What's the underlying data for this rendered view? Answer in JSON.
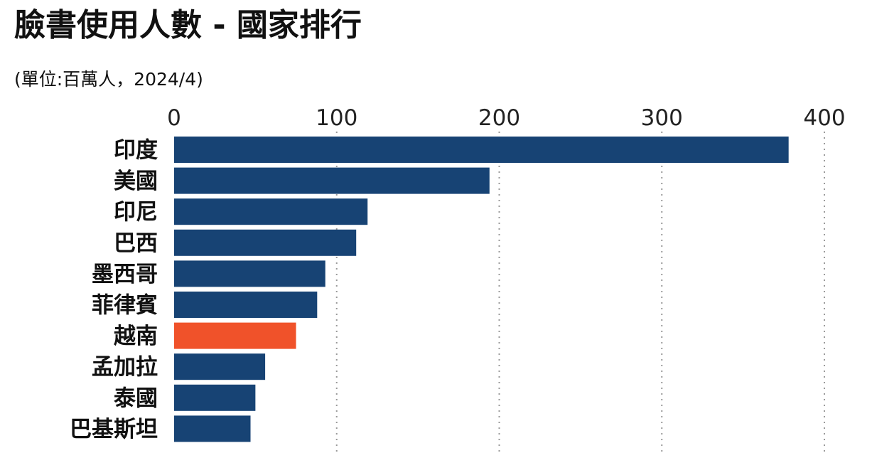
{
  "title": "臉書使用人數 - 國家排行",
  "subtitle": "(單位:百萬人，2024/4)",
  "colors": {
    "default_bar": "#174374",
    "highlight_bar": "#F0522A",
    "grid": "#9a9a9a"
  },
  "chart_data": {
    "type": "bar",
    "orientation": "horizontal",
    "title": "臉書使用人數 - 國家排行",
    "subtitle": "(單位:百萬人，2024/4)",
    "xaxis_position": "top",
    "xlim": [
      0,
      400
    ],
    "xticks": [
      0,
      100,
      200,
      300,
      400
    ],
    "grid": true,
    "categories": [
      "印度",
      "美國",
      "印尼",
      "巴西",
      "墨西哥",
      "菲律賓",
      "越南",
      "孟加拉",
      "泰國",
      "巴基斯坦"
    ],
    "values": [
      378,
      194,
      119,
      112,
      93,
      88,
      75,
      56,
      50,
      47
    ],
    "highlight": "越南"
  }
}
